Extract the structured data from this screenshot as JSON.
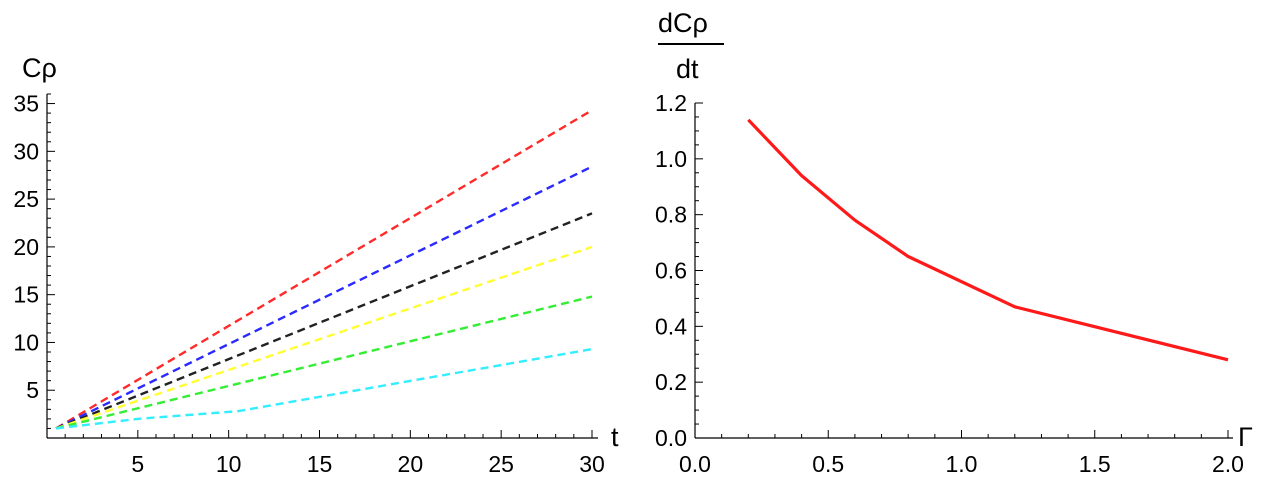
{
  "chart_data": [
    {
      "type": "line",
      "title": "",
      "xlabel": "t",
      "ylabel": "Cρ",
      "xlim": [
        0,
        30
      ],
      "ylim": [
        0,
        36
      ],
      "x_ticks": [
        5,
        10,
        15,
        20,
        25,
        30
      ],
      "x_tick_labels": [
        "5",
        "10",
        "15",
        "20",
        "25",
        "30"
      ],
      "y_ticks": [
        5,
        10,
        15,
        20,
        25,
        30,
        35
      ],
      "y_tick_labels": [
        "5",
        "10",
        "15",
        "20",
        "25",
        "30",
        "35"
      ],
      "line_style": "dashed",
      "grid": false,
      "series": [
        {
          "color": "#ff2a2a",
          "x": [
            0.5,
            30
          ],
          "y": [
            1.0,
            34.3
          ]
        },
        {
          "color": "#2a2aff",
          "x": [
            0.5,
            30
          ],
          "y": [
            1.0,
            28.4
          ]
        },
        {
          "color": "#222222",
          "x": [
            0.5,
            30
          ],
          "y": [
            1.0,
            23.5
          ]
        },
        {
          "color": "#ffff33",
          "x": [
            0.5,
            30
          ],
          "y": [
            1.0,
            20.0
          ]
        },
        {
          "color": "#33ee33",
          "x": [
            0.5,
            30
          ],
          "y": [
            1.0,
            14.8
          ]
        },
        {
          "color": "#33eeff",
          "x": [
            0.5,
            5,
            10.5,
            30
          ],
          "y": [
            1.0,
            2.0,
            2.8,
            9.3
          ]
        }
      ]
    },
    {
      "type": "line",
      "title": "",
      "xlabel": "Γ",
      "ylabel_numerator": "dCρ",
      "ylabel_denominator": "dt",
      "xlim": [
        0,
        2
      ],
      "ylim": [
        0,
        1.2
      ],
      "x_ticks": [
        0.0,
        0.5,
        1.0,
        1.5,
        2.0
      ],
      "x_tick_labels": [
        "0.0",
        "0.5",
        "1.0",
        "1.5",
        "2.0"
      ],
      "y_ticks": [
        0.0,
        0.2,
        0.4,
        0.6,
        0.8,
        1.0,
        1.2
      ],
      "y_tick_labels": [
        "0.0",
        "0.2",
        "0.4",
        "0.6",
        "0.8",
        "1.0",
        "1.2"
      ],
      "line_style": "solid",
      "grid": false,
      "series": [
        {
          "color": "#ff1a1a",
          "x": [
            0.2,
            0.4,
            0.6,
            0.8,
            1.2,
            2.0
          ],
          "y": [
            1.14,
            0.94,
            0.78,
            0.65,
            0.47,
            0.28
          ]
        }
      ]
    }
  ]
}
